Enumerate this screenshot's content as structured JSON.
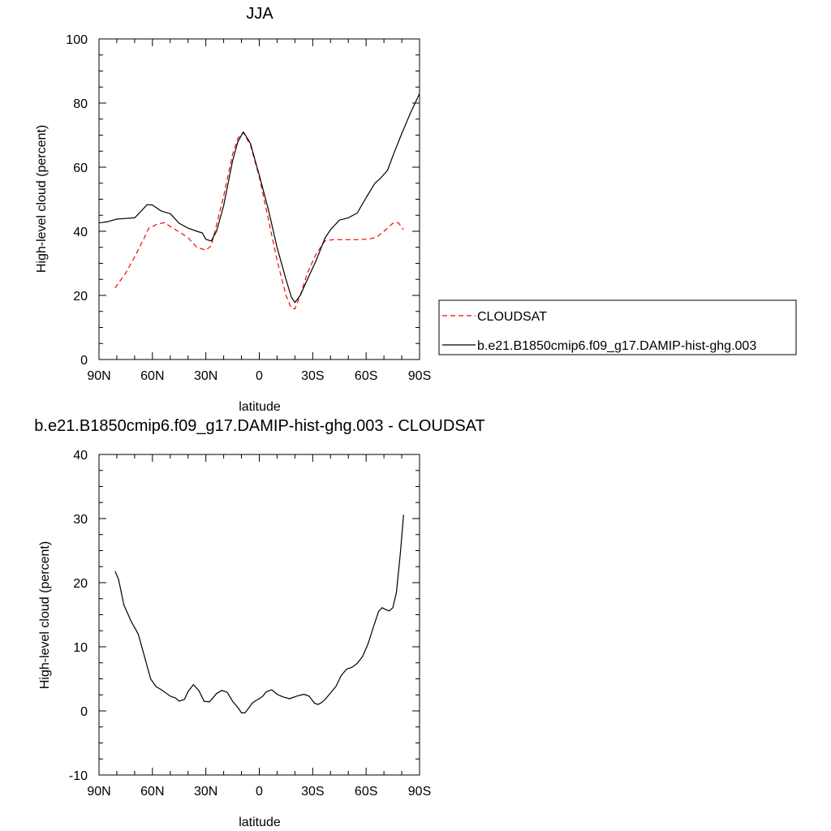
{
  "chart_data": [
    {
      "type": "line",
      "title": "JJA",
      "xlabel": "latitude",
      "ylabel": "High-level cloud (percent)",
      "xlim": [
        90,
        -90
      ],
      "ylim": [
        0,
        100
      ],
      "xticks": [
        90,
        60,
        30,
        0,
        -30,
        -60,
        -90
      ],
      "xtick_labels": [
        "90N",
        "60N",
        "30N",
        "0",
        "30S",
        "60S",
        "90S"
      ],
      "yticks": [
        0,
        20,
        40,
        60,
        80,
        100
      ],
      "ytick_labels": [
        "0",
        "20",
        "40",
        "60",
        "80",
        "100"
      ],
      "grid": false,
      "legend_position": "right",
      "series": [
        {
          "name": "CLOUDSAT",
          "color": "#ff0000",
          "dash": "dashed",
          "x": [
            81,
            75,
            70,
            65,
            62,
            57,
            53,
            50,
            45,
            40,
            35,
            30,
            27,
            24,
            20,
            15,
            12,
            9,
            5,
            0,
            -5,
            -10,
            -15,
            -18,
            -20,
            -23,
            -27,
            -32,
            -37,
            -42,
            -48,
            -55,
            -62,
            -66,
            -70,
            -75,
            -78,
            -81
          ],
          "y": [
            22.3,
            27,
            32,
            37.5,
            41,
            42.3,
            42.7,
            41.5,
            39.8,
            38,
            35,
            34.1,
            35.5,
            42,
            51,
            64,
            69,
            70.8,
            67,
            57,
            44,
            31,
            20,
            16,
            15.8,
            20,
            27,
            33,
            37.1,
            37.4,
            37.4,
            37.4,
            37.6,
            38.2,
            40,
            42.5,
            42.7,
            40.5
          ]
        },
        {
          "name": "b.e21.B1850cmip6.f09_g17.DAMIP-hist-ghg.003",
          "color": "#000000",
          "dash": "solid",
          "x": [
            90,
            85,
            80,
            75,
            70,
            66,
            63,
            60,
            55,
            50,
            45,
            40,
            35,
            32,
            30,
            27,
            24,
            20,
            15,
            12,
            9,
            5,
            0,
            -5,
            -10,
            -15,
            -18,
            -20,
            -23,
            -27,
            -32,
            -37,
            -40,
            -45,
            -50,
            -55,
            -60,
            -65,
            -68,
            -72,
            -75,
            -80,
            -85,
            -90
          ],
          "y": [
            42.6,
            43,
            43.8,
            44,
            44.2,
            46.5,
            48.3,
            48.2,
            46.3,
            45.5,
            42.5,
            41,
            40,
            39.5,
            37.5,
            37,
            40,
            48,
            62,
            68,
            71,
            67.5,
            57.5,
            47,
            35,
            25,
            19.5,
            17.8,
            20,
            25,
            31,
            38,
            40.5,
            43.5,
            44.2,
            45.7,
            50.5,
            55,
            56.5,
            59,
            63.5,
            70.5,
            77,
            83
          ]
        }
      ]
    },
    {
      "type": "line",
      "title": "b.e21.B1850cmip6.f09_g17.DAMIP-hist-ghg.003 - CLOUDSAT",
      "xlabel": "latitude",
      "ylabel": "High-level cloud (percent)",
      "xlim": [
        90,
        -90
      ],
      "ylim": [
        -10,
        40
      ],
      "xticks": [
        90,
        60,
        30,
        0,
        -30,
        -60,
        -90
      ],
      "xtick_labels": [
        "90N",
        "60N",
        "30N",
        "0",
        "30S",
        "60S",
        "90S"
      ],
      "yticks": [
        -10,
        0,
        10,
        20,
        30,
        40
      ],
      "ytick_labels": [
        "-10",
        "0",
        "10",
        "20",
        "30",
        "40"
      ],
      "grid": false,
      "series": [
        {
          "color": "#000000",
          "dash": "solid",
          "x": [
            81,
            79,
            76,
            72,
            68,
            64,
            61,
            58,
            55,
            52,
            50,
            47,
            45,
            42,
            40,
            37,
            34,
            31,
            28,
            24,
            21,
            18,
            15,
            12,
            10,
            8,
            6,
            4,
            2,
            0,
            -2,
            -4,
            -7,
            -10,
            -13,
            -17,
            -21,
            -25,
            -28,
            -31,
            -33,
            -35,
            -37,
            -40,
            -43,
            -46,
            -49,
            -52,
            -55,
            -58,
            -61,
            -64,
            -67,
            -69,
            -71,
            -73,
            -75,
            -77,
            -79,
            -81
          ],
          "y": [
            21.8,
            20.5,
            16.5,
            14,
            12,
            8,
            5,
            3.8,
            3.3,
            2.7,
            2.3,
            2.0,
            1.5,
            1.8,
            3.0,
            4.1,
            3.2,
            1.5,
            1.4,
            2.7,
            3.2,
            2.9,
            1.5,
            0.5,
            -0.3,
            -0.3,
            0.4,
            1.2,
            1.6,
            1.9,
            2.3,
            3.0,
            3.3,
            2.6,
            2.2,
            1.9,
            2.3,
            2.6,
            2.3,
            1.2,
            1.0,
            1.3,
            1.8,
            2.8,
            3.8,
            5.5,
            6.5,
            6.8,
            7.4,
            8.5,
            10.4,
            13,
            15.5,
            16.1,
            15.8,
            15.6,
            16.1,
            18.5,
            24,
            30.6
          ]
        }
      ]
    }
  ]
}
